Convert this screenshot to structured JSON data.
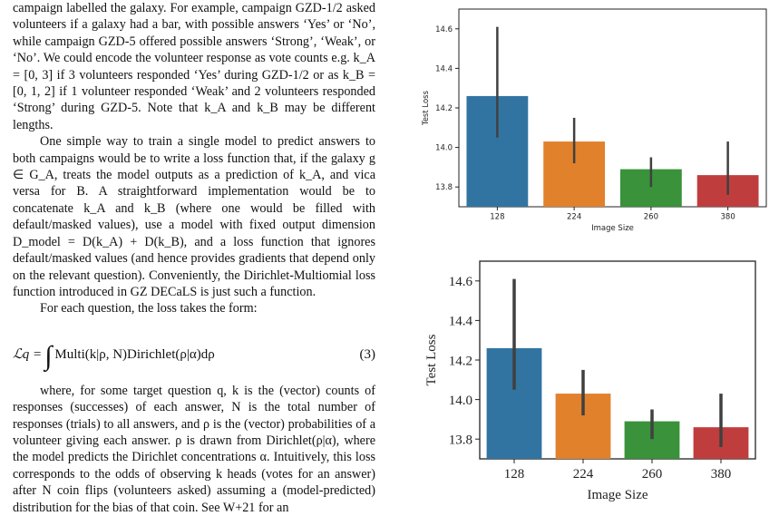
{
  "paper": {
    "para1": "campaign labelled the galaxy. For example, campaign GZD-1/2 asked volunteers if a galaxy had a bar, with possible answers ‘Yes’ or ‘No’, while campaign GZD-5 offered possible answers ‘Strong’, ‘Weak’, or ‘No’. We could encode the volunteer response as vote counts e.g. k_A = [0, 3] if 3 volunteers responded ‘Yes’ during GZD-1/2 or as k_B = [0, 1, 2] if 1 volunteer responded ‘Weak’ and 2 volunteers responded ‘Strong’ during GZD-5. Note that k_A and k_B may be different lengths.",
    "para2": "One simple way to train a single model to predict answers to both campaigns would be to write a loss function that, if the galaxy g ∈ G_A, treats the model outputs as a prediction of k_A, and vica versa for B. A straightforward implementation would be to concatenate k_A and k_B (where one would be filled with default/masked values), use a model with fixed output dimension D_model = D(k_A) + D(k_B), and a loss function that ignores default/masked values (and hence provides gradients that depend only on the relevant question). Conveniently, the Dirichlet-Multiomial loss function introduced in GZ DECaLS is just such a function.",
    "para3": "For each question, the loss takes the form:",
    "equation_lhs": "ℒq =",
    "equation_integral": "∫",
    "equation_rhs": "Multi(k|ρ, N)Dirichlet(ρ|α)dρ",
    "equation_number": "(3)",
    "para4": "where, for some target question q, k is the (vector) counts of responses (successes) of each answer, N is the total number of responses (trials) to all answers, and ρ is the (vector) probabilities of a volunteer giving each answer. ρ is drawn from Dirichlet(ρ|α), where the model predicts the Dirichlet concentrations α. Intuitively, this loss corresponds to the odds of observing k heads (votes for an answer) after N coin flips (volunteers asked) assuming a (model-predicted) distribution for the bias of that coin. See W+21 for an"
  },
  "chart_data": [
    {
      "type": "bar",
      "categories": [
        "128",
        "224",
        "260",
        "380"
      ],
      "values": [
        14.26,
        14.03,
        13.89,
        13.86
      ],
      "err_low": [
        14.05,
        13.92,
        13.8,
        13.76
      ],
      "err_high": [
        14.61,
        14.15,
        13.95,
        14.03
      ],
      "colors": [
        "#3274a1",
        "#e1812c",
        "#3a923a",
        "#c03d3e"
      ],
      "ylim": [
        13.7,
        14.7
      ],
      "yticks": [
        "13.8",
        "14.0",
        "14.2",
        "14.4",
        "14.6"
      ],
      "xlabel": "Image Size",
      "ylabel": "Test Loss",
      "grid": false
    },
    {
      "type": "bar",
      "categories": [
        "128",
        "224",
        "260",
        "380"
      ],
      "values": [
        14.26,
        14.03,
        13.89,
        13.86
      ],
      "err_low": [
        14.05,
        13.92,
        13.8,
        13.76
      ],
      "err_high": [
        14.61,
        14.15,
        13.95,
        14.03
      ],
      "colors": [
        "#3274a1",
        "#e1812c",
        "#3a923a",
        "#c03d3e"
      ],
      "ylim": [
        13.7,
        14.7
      ],
      "yticks": [
        "13.8",
        "14.0",
        "14.2",
        "14.4",
        "14.6"
      ],
      "xlabel": "Image Size",
      "ylabel": "Test Loss",
      "grid": false
    }
  ]
}
